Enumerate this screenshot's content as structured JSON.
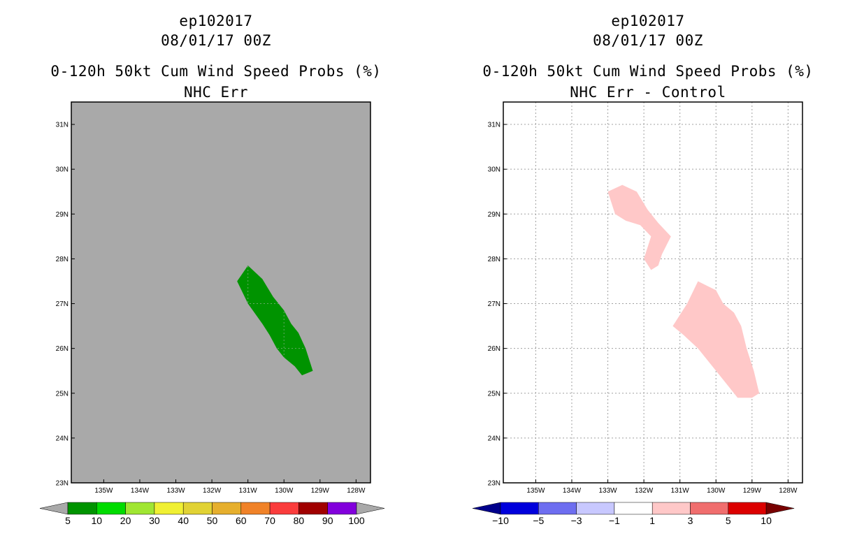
{
  "chart_data": [
    {
      "type": "filled-contour-map",
      "title_lines": [
        "ep102017",
        "08/01/17 00Z",
        "0-120h 50kt Cum Wind Speed Probs (%)",
        "NHC Err"
      ],
      "xlabel": "",
      "ylabel": "",
      "xlim": [
        -135.9,
        -127.6
      ],
      "ylim": [
        23,
        31.5
      ],
      "x_ticks": [
        -135,
        -134,
        -133,
        -132,
        -131,
        -130,
        -129,
        -128
      ],
      "x_tick_labels": [
        "135W",
        "134W",
        "133W",
        "132W",
        "131W",
        "130W",
        "129W",
        "128W"
      ],
      "y_ticks": [
        23,
        24,
        25,
        26,
        27,
        28,
        29,
        30,
        31
      ],
      "y_tick_labels": [
        "23N",
        "24N",
        "25N",
        "26N",
        "27N",
        "28N",
        "29N",
        "30N",
        "31N"
      ],
      "background_color": "#a9a9a9",
      "grid": false,
      "regions": [
        {
          "level": "5-10",
          "color": "#009300",
          "polygon": [
            [
              -131.3,
              27.5
            ],
            [
              -131.0,
              27.85
            ],
            [
              -130.6,
              27.55
            ],
            [
              -130.3,
              27.15
            ],
            [
              -130.0,
              26.85
            ],
            [
              -129.8,
              26.55
            ],
            [
              -129.6,
              26.35
            ],
            [
              -129.4,
              26.0
            ],
            [
              -129.2,
              25.5
            ],
            [
              -129.5,
              25.4
            ],
            [
              -129.7,
              25.6
            ],
            [
              -130.0,
              25.8
            ],
            [
              -130.2,
              26.0
            ],
            [
              -130.4,
              26.3
            ],
            [
              -130.6,
              26.55
            ],
            [
              -131.0,
              27.0
            ]
          ]
        }
      ],
      "colorbar": {
        "colors": [
          "#009300",
          "#00dc00",
          "#a0e632",
          "#f0f033",
          "#e1d234",
          "#e6af2d",
          "#f08228",
          "#fa3c3c",
          "#a00000",
          "#8200dc"
        ],
        "labels": [
          "5",
          "10",
          "20",
          "30",
          "40",
          "50",
          "60",
          "70",
          "80",
          "90",
          "100"
        ],
        "under_color": "#a9a9a9",
        "over_color": "#a9a9a9"
      }
    },
    {
      "type": "filled-contour-map",
      "title_lines": [
        "ep102017",
        "08/01/17 00Z",
        "0-120h 50kt Cum Wind Speed Probs (%)",
        "NHC Err - Control"
      ],
      "xlabel": "",
      "ylabel": "",
      "xlim": [
        -135.9,
        -127.6
      ],
      "ylim": [
        23,
        31.5
      ],
      "x_ticks": [
        -135,
        -134,
        -133,
        -132,
        -131,
        -130,
        -129,
        -128
      ],
      "x_tick_labels": [
        "135W",
        "134W",
        "133W",
        "132W",
        "131W",
        "130W",
        "129W",
        "128W"
      ],
      "y_ticks": [
        23,
        24,
        25,
        26,
        27,
        28,
        29,
        30,
        31
      ],
      "y_tick_labels": [
        "23N",
        "24N",
        "25N",
        "26N",
        "27N",
        "28N",
        "29N",
        "30N",
        "31N"
      ],
      "background_color": "#ffffff",
      "grid": true,
      "regions": [
        {
          "level": "1-3",
          "color": "#ffc8c8",
          "polygon": [
            [
              -133.0,
              29.5
            ],
            [
              -132.6,
              29.65
            ],
            [
              -132.2,
              29.5
            ],
            [
              -131.9,
              29.1
            ],
            [
              -131.6,
              28.8
            ],
            [
              -131.25,
              28.5
            ],
            [
              -131.5,
              28.1
            ],
            [
              -131.6,
              27.85
            ],
            [
              -131.8,
              27.75
            ],
            [
              -132.0,
              28.0
            ],
            [
              -131.8,
              28.5
            ],
            [
              -132.1,
              28.75
            ],
            [
              -132.5,
              28.85
            ],
            [
              -132.8,
              29.0
            ]
          ]
        },
        {
          "level": "1-3",
          "color": "#ffc8c8",
          "polygon": [
            [
              -131.2,
              26.5
            ],
            [
              -130.8,
              27.0
            ],
            [
              -130.5,
              27.5
            ],
            [
              -130.0,
              27.3
            ],
            [
              -129.8,
              27.0
            ],
            [
              -129.5,
              26.8
            ],
            [
              -129.3,
              26.5
            ],
            [
              -129.15,
              26.0
            ],
            [
              -128.95,
              25.5
            ],
            [
              -128.8,
              25.0
            ],
            [
              -129.0,
              24.9
            ],
            [
              -129.4,
              24.9
            ],
            [
              -129.8,
              25.3
            ],
            [
              -130.1,
              25.6
            ],
            [
              -130.5,
              26.0
            ],
            [
              -130.9,
              26.3
            ]
          ]
        }
      ],
      "colorbar": {
        "colors": [
          "#0000dc",
          "#6e6ef0",
          "#c8c8ff",
          "#ffffff",
          "#ffc8c8",
          "#f06e6e",
          "#dc0000"
        ],
        "labels": [
          "-10",
          "-5",
          "-3",
          "-1",
          "1",
          "3",
          "5",
          "10"
        ],
        "under_color": "#00008c",
        "over_color": "#780000"
      }
    }
  ]
}
